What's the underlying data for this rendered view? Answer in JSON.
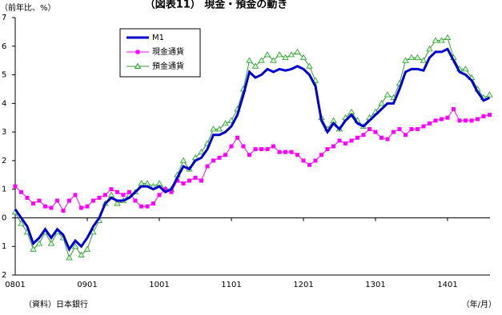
{
  "chart_data": {
    "type": "line",
    "title": "（図表11） 現金・預金の動き",
    "y_unit": "（前年比、%）",
    "source": "（資料）日本銀行",
    "x_unit": "（年/月）",
    "categories": [
      "0801",
      null,
      null,
      null,
      null,
      null,
      null,
      null,
      null,
      null,
      null,
      null,
      "0901",
      null,
      null,
      null,
      null,
      null,
      null,
      null,
      null,
      null,
      null,
      null,
      "1001",
      null,
      null,
      null,
      null,
      null,
      null,
      null,
      null,
      null,
      null,
      null,
      "1101",
      null,
      null,
      null,
      null,
      null,
      null,
      null,
      null,
      null,
      null,
      null,
      "1201",
      null,
      null,
      null,
      null,
      null,
      null,
      null,
      null,
      null,
      null,
      null,
      "1301",
      null,
      null,
      null,
      null,
      null,
      null,
      null,
      null,
      null,
      null,
      null,
      "1401",
      null,
      null,
      null,
      null,
      null,
      null,
      null
    ],
    "series": [
      {
        "name": "M1",
        "color": "#0000cc",
        "values": [
          0.3,
          0,
          -0.3,
          -0.9,
          -0.7,
          -0.4,
          -0.7,
          -0.4,
          -0.6,
          -1.1,
          -0.8,
          -1.0,
          -0.7,
          -0.3,
          0,
          0.5,
          0.7,
          0.6,
          0.6,
          0.7,
          0.9,
          1.1,
          1.1,
          1.0,
          1.1,
          0.9,
          1.0,
          1.4,
          1.8,
          1.7,
          2.0,
          2.1,
          2.4,
          2.9,
          2.9,
          3.0,
          3.2,
          3.6,
          4.3,
          5.1,
          4.9,
          5.0,
          5.2,
          5.1,
          5.2,
          5.15,
          5.2,
          5.3,
          5.2,
          5.0,
          4.6,
          3.4,
          3.0,
          3.3,
          3.1,
          3.4,
          3.6,
          3.3,
          3.2,
          3.4,
          3.6,
          3.8,
          4.0,
          4.0,
          4.5,
          5.1,
          5.2,
          5.2,
          5.15,
          5.6,
          5.8,
          5.8,
          5.9,
          5.5,
          5.1,
          5.0,
          4.8,
          4.4,
          4.1,
          4.2
        ]
      },
      {
        "name": "現金通貨",
        "color": "#ff00ff",
        "values": [
          1.1,
          0.9,
          0.7,
          0.5,
          0.6,
          0.4,
          0.35,
          0.6,
          0.25,
          0.6,
          0.8,
          0.35,
          0.4,
          0.6,
          0.7,
          0.8,
          1.0,
          0.9,
          0.8,
          0.9,
          0.6,
          0.4,
          0.4,
          0.5,
          0.8,
          1.0,
          0.9,
          1.3,
          1.2,
          1.3,
          1.4,
          1.3,
          1.8,
          2.0,
          2.1,
          2.2,
          2.5,
          2.8,
          2.5,
          2.2,
          2.4,
          2.4,
          2.4,
          2.5,
          2.3,
          2.3,
          2.3,
          2.2,
          2.0,
          1.85,
          2.0,
          2.2,
          2.4,
          2.5,
          2.7,
          2.6,
          2.7,
          2.8,
          2.9,
          3.1,
          3.0,
          2.8,
          2.75,
          3.0,
          3.1,
          2.9,
          3.1,
          3.1,
          3.2,
          3.3,
          3.4,
          3.45,
          3.5,
          3.8,
          3.4,
          3.4,
          3.4,
          3.45,
          3.55,
          3.6
        ]
      },
      {
        "name": "預金通貨",
        "color": "#339933",
        "values": [
          0.2,
          -0.2,
          -0.5,
          -1.1,
          -0.9,
          -0.5,
          -0.9,
          -0.5,
          -0.7,
          -1.4,
          -1.0,
          -1.3,
          -1.1,
          -0.5,
          -0.1,
          0.5,
          0.8,
          0.5,
          0.6,
          0.8,
          0.9,
          1.2,
          1.2,
          1.1,
          1.2,
          1.0,
          1.0,
          1.5,
          2.0,
          1.7,
          2.1,
          2.3,
          2.6,
          3.1,
          3.1,
          3.3,
          3.4,
          3.8,
          4.5,
          5.5,
          5.3,
          5.5,
          5.7,
          5.5,
          5.7,
          5.6,
          5.7,
          5.8,
          5.6,
          5.3,
          4.8,
          3.5,
          3.1,
          3.4,
          3.1,
          3.5,
          3.7,
          3.4,
          3.2,
          3.5,
          3.7,
          4.0,
          4.3,
          4.2,
          4.7,
          5.5,
          5.6,
          5.6,
          5.5,
          5.9,
          6.2,
          6.2,
          6.3,
          5.6,
          5.2,
          5.2,
          4.9,
          4.5,
          4.2,
          4.3
        ]
      }
    ],
    "ylim": [
      -2,
      7
    ],
    "yticks": [
      7,
      6,
      5,
      4,
      3,
      2,
      1,
      0,
      {
        "value": -1,
        "label": "1"
      },
      {
        "value": -2,
        "label": "2"
      }
    ]
  }
}
